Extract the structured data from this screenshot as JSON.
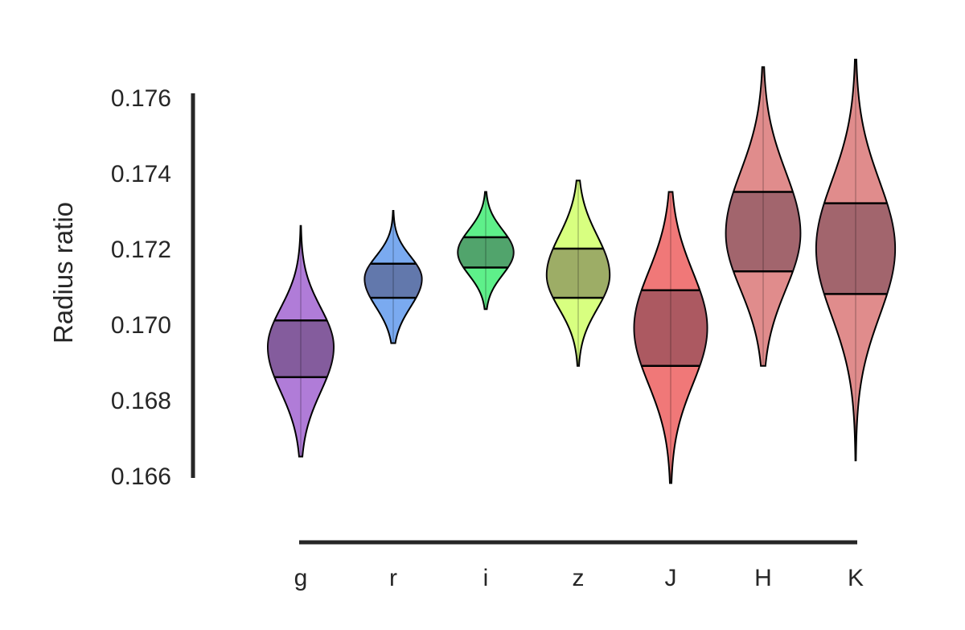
{
  "chart_data": {
    "type": "violin",
    "ylabel": "Radius ratio",
    "xlabel": "",
    "ylim": [
      0.166,
      0.176
    ],
    "yticks": [
      "0.166",
      "0.168",
      "0.170",
      "0.172",
      "0.174",
      "0.176"
    ],
    "grid": false,
    "categories": [
      "g",
      "r",
      "i",
      "z",
      "J",
      "H",
      "K"
    ],
    "series": [
      {
        "category": "g",
        "median": 0.1694,
        "q1": 0.1686,
        "q3": 0.1701,
        "min": 0.1665,
        "max": 0.1726,
        "color": "#b07cd8"
      },
      {
        "category": "r",
        "median": 0.1712,
        "q1": 0.1707,
        "q3": 0.1716,
        "min": 0.1695,
        "max": 0.173,
        "color": "#7aaaf0"
      },
      {
        "category": "i",
        "median": 0.1719,
        "q1": 0.1715,
        "q3": 0.1723,
        "min": 0.1704,
        "max": 0.1735,
        "color": "#5ef08a"
      },
      {
        "category": "z",
        "median": 0.1713,
        "q1": 0.1707,
        "q3": 0.172,
        "min": 0.1689,
        "max": 0.1738,
        "color": "#d8ff80"
      },
      {
        "category": "J",
        "median": 0.1699,
        "q1": 0.1689,
        "q3": 0.1709,
        "min": 0.1658,
        "max": 0.1735,
        "color": "#f07878"
      },
      {
        "category": "H",
        "median": 0.1724,
        "q1": 0.1714,
        "q3": 0.1735,
        "min": 0.1689,
        "max": 0.1768,
        "color": "#e08c8c"
      },
      {
        "category": "K",
        "median": 0.172,
        "q1": 0.1708,
        "q3": 0.1732,
        "min": 0.1664,
        "max": 0.177,
        "color": "#e08c8c"
      }
    ]
  }
}
